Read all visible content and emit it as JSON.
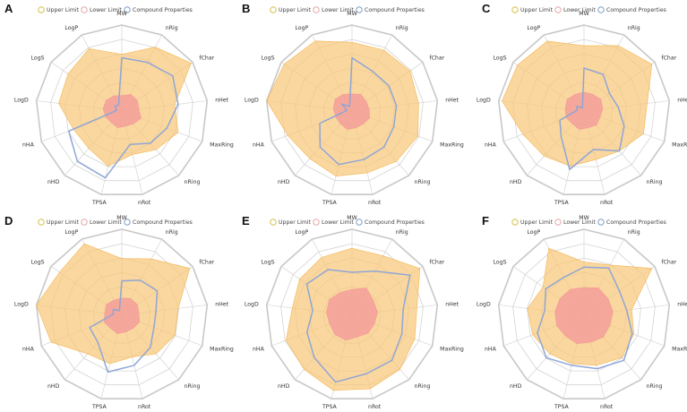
{
  "legend": {
    "upper": "Upper Limit",
    "lower": "Lower Limit",
    "compound": "Compound Properties"
  },
  "colors": {
    "upper_fill": "#f8c878",
    "upper_stroke": "#f2b450",
    "lower_fill": "#f39a9a",
    "compound_stroke": "#8fa6d6",
    "legend_upper_ring": "#d4c24a",
    "legend_lower_ring": "#e8a6a6",
    "legend_compound_ring": "#7d9fc8"
  },
  "chart_data": [
    {
      "type": "radar",
      "panel": "A",
      "axes": [
        "MW",
        "nRig",
        "fChar",
        "nHet",
        "MaxRing",
        "nRing",
        "nRot",
        "TPSA",
        "nHD",
        "nHA",
        "LogD",
        "LogS",
        "LogP"
      ],
      "scale": [
        0,
        1
      ],
      "series": [
        {
          "name": "Upper Limit",
          "values": [
            0.66,
            0.84,
            0.98,
            0.62,
            0.7,
            0.6,
            0.52,
            0.66,
            0.58,
            0.6,
            0.74,
            0.76,
            0.82
          ]
        },
        {
          "name": "Lower Limit",
          "values": [
            0.18,
            0.22,
            0.22,
            0.2,
            0.24,
            0.2,
            0.18,
            0.2,
            0.18,
            0.2,
            0.22,
            0.22,
            0.2
          ]
        },
        {
          "name": "Compound Properties",
          "values": [
            0.62,
            0.64,
            0.72,
            0.66,
            0.56,
            0.5,
            0.4,
            0.8,
            0.78,
            0.66,
            0.06,
            0.1,
            0.08
          ]
        }
      ]
    },
    {
      "type": "radar",
      "panel": "B",
      "axes": [
        "MW",
        "nRig",
        "fChar",
        "nHet",
        "MaxRing",
        "nRing",
        "nRot",
        "TPSA",
        "nHD",
        "nHA",
        "LogD",
        "LogS",
        "LogP"
      ],
      "scale": [
        0,
        1
      ],
      "series": [
        {
          "name": "Upper Limit",
          "values": [
            0.8,
            0.8,
            0.82,
            0.78,
            0.82,
            0.78,
            0.74,
            0.78,
            0.74,
            0.8,
            1.0,
            0.96,
            0.92
          ]
        },
        {
          "name": "Lower Limit",
          "values": [
            0.2,
            0.22,
            0.2,
            0.2,
            0.22,
            0.2,
            0.2,
            0.22,
            0.2,
            0.2,
            0.22,
            0.24,
            0.22
          ]
        },
        {
          "name": "Compound Properties",
          "values": [
            0.62,
            0.52,
            0.52,
            0.52,
            0.52,
            0.56,
            0.58,
            0.64,
            0.56,
            0.4,
            0.06,
            0.14,
            0.06
          ]
        }
      ]
    },
    {
      "type": "radar",
      "panel": "C",
      "axes": [
        "MW",
        "nRig",
        "fChar",
        "nHet",
        "MaxRing",
        "nRing",
        "nRot",
        "TPSA",
        "nHD",
        "nHA",
        "LogD",
        "LogS",
        "LogP"
      ],
      "scale": [
        0,
        1
      ],
      "series": [
        {
          "name": "Upper Limit",
          "values": [
            0.76,
            0.86,
            0.96,
            0.74,
            0.74,
            0.62,
            0.58,
            0.66,
            0.7,
            0.76,
            0.96,
            0.94,
            0.92
          ]
        },
        {
          "name": "Lower Limit",
          "values": [
            0.22,
            0.22,
            0.24,
            0.22,
            0.2,
            0.22,
            0.2,
            0.22,
            0.2,
            0.22,
            0.22,
            0.24,
            0.22
          ]
        },
        {
          "name": "Compound Properties",
          "values": [
            0.5,
            0.48,
            0.36,
            0.4,
            0.5,
            0.62,
            0.46,
            0.7,
            0.4,
            0.3,
            0.08,
            0.1,
            0.04
          ]
        }
      ]
    },
    {
      "type": "radar",
      "panel": "D",
      "axes": [
        "MW",
        "nRig",
        "fChar",
        "nHet",
        "MaxRing",
        "nRing",
        "nRot",
        "TPSA",
        "nHD",
        "nHA",
        "LogD",
        "LogS",
        "LogP"
      ],
      "scale": [
        0,
        1
      ],
      "series": [
        {
          "name": "Upper Limit",
          "values": [
            0.66,
            0.74,
            0.96,
            0.66,
            0.66,
            0.6,
            0.5,
            0.58,
            0.6,
            0.88,
            1.0,
            0.88,
            0.94
          ]
        },
        {
          "name": "Lower Limit",
          "values": [
            0.2,
            0.22,
            0.22,
            0.2,
            0.22,
            0.2,
            0.2,
            0.22,
            0.2,
            0.22,
            0.2,
            0.22,
            0.2
          ]
        },
        {
          "name": "Compound Properties",
          "values": [
            0.4,
            0.46,
            0.5,
            0.4,
            0.4,
            0.5,
            0.6,
            0.68,
            0.42,
            0.4,
            0.1,
            0.12,
            0.06
          ]
        }
      ]
    },
    {
      "type": "radar",
      "panel": "E",
      "axes": [
        "MW",
        "nRig",
        "fChar",
        "nHet",
        "MaxRing",
        "nRing",
        "nRot",
        "TPSA",
        "nHD",
        "nHA",
        "LogD",
        "LogS",
        "LogP"
      ],
      "scale": [
        0,
        1
      ],
      "series": [
        {
          "name": "Upper Limit",
          "values": [
            0.78,
            0.78,
            0.96,
            0.76,
            0.78,
            0.84,
            0.88,
            0.9,
            0.84,
            0.82,
            0.7,
            0.74,
            0.76
          ]
        },
        {
          "name": "Lower Limit",
          "values": [
            0.3,
            0.36,
            0.3,
            0.3,
            0.28,
            0.28,
            0.26,
            0.3,
            0.3,
            0.28,
            0.3,
            0.32,
            0.3
          ]
        },
        {
          "name": "Compound Properties",
          "values": [
            0.5,
            0.58,
            0.82,
            0.6,
            0.62,
            0.7,
            0.7,
            0.8,
            0.66,
            0.56,
            0.46,
            0.64,
            0.6
          ]
        }
      ]
    },
    {
      "type": "radar",
      "panel": "F",
      "axes": [
        "MW",
        "nRig",
        "fChar",
        "nHet",
        "MaxRing",
        "nRing",
        "nRot",
        "TPSA",
        "nHD",
        "nHA",
        "LogD",
        "LogS",
        "LogP"
      ],
      "scale": [
        0,
        1
      ],
      "series": [
        {
          "name": "Upper Limit",
          "values": [
            0.62,
            0.66,
            0.96,
            0.56,
            0.62,
            0.66,
            0.6,
            0.58,
            0.6,
            0.64,
            0.66,
            0.58,
            0.88
          ]
        },
        {
          "name": "Lower Limit",
          "values": [
            0.32,
            0.36,
            0.34,
            0.34,
            0.32,
            0.34,
            0.32,
            0.34,
            0.32,
            0.34,
            0.34,
            0.34,
            0.34
          ]
        },
        {
          "name": "Compound Properties",
          "values": [
            0.56,
            0.62,
            0.5,
            0.5,
            0.6,
            0.7,
            0.64,
            0.6,
            0.66,
            0.58,
            0.46,
            0.54,
            0.5
          ]
        }
      ]
    }
  ]
}
